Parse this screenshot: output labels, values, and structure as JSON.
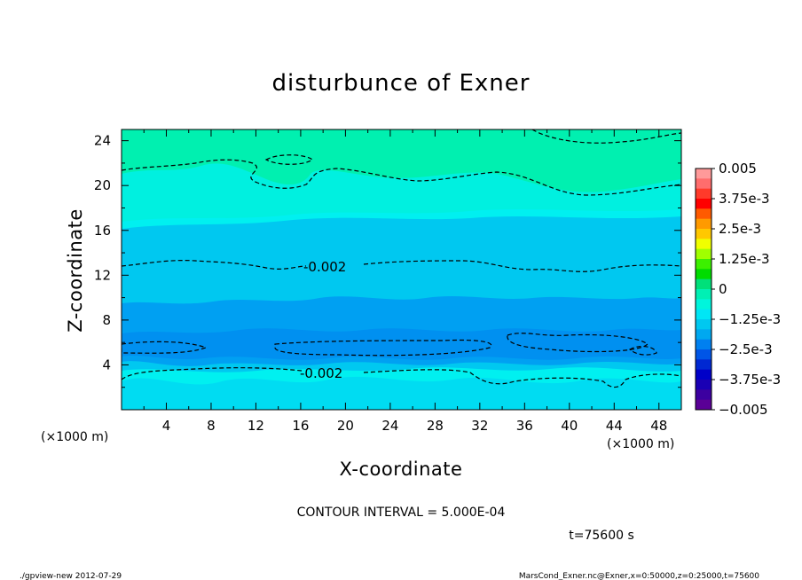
{
  "chart_data": {
    "type": "heatmap",
    "title": "disturbunce of Exner",
    "xlabel": "X-coordinate",
    "ylabel": "Z-coordinate",
    "x_unit": "(×1000 m)",
    "y_unit": "(×1000 m)",
    "xlim": [
      0,
      50
    ],
    "ylim": [
      0,
      25
    ],
    "x_ticks": [
      "4",
      "8",
      "12",
      "16",
      "20",
      "24",
      "28",
      "32",
      "36",
      "40",
      "44",
      "48"
    ],
    "y_ticks": [
      "4",
      "8",
      "12",
      "16",
      "20",
      "24"
    ],
    "colorbar": {
      "range": [
        -0.005,
        0.005
      ],
      "labels": [
        "0.005",
        "3.75e-3",
        "2.5e-3",
        "1.25e-3",
        "0",
        "−1.25e-3",
        "−2.5e-3",
        "−3.75e-3",
        "−0.005"
      ],
      "colors": [
        "#ff9a9a",
        "#ff6d6d",
        "#ff3a2a",
        "#ff0000",
        "#ff5a00",
        "#ff9a00",
        "#ffc800",
        "#f0ff00",
        "#a0ff00",
        "#3cf000",
        "#00dc00",
        "#00e07a",
        "#00f0b4",
        "#00f5dc",
        "#00e6f5",
        "#00c8f0",
        "#00a8f0",
        "#0080f0",
        "#0055e6",
        "#0028d2",
        "#0000c8",
        "#1a00b4",
        "#3c00a0",
        "#5a0096"
      ]
    },
    "contour_labels": [
      {
        "text": "-0.002",
        "x": 18.3,
        "z": 12.6
      },
      {
        "text": "-0.002",
        "x": 18.0,
        "z": 3.2
      }
    ],
    "contour_interval": "CONTOUR INTERVAL = 5.000E-04",
    "time": "t=75600 s"
  },
  "footer": {
    "left": "./gpview-new   2012-07-29",
    "right": "MarsCond_Exner.nc@Exner,x=0:50000,z=0:25000,t=75600"
  }
}
